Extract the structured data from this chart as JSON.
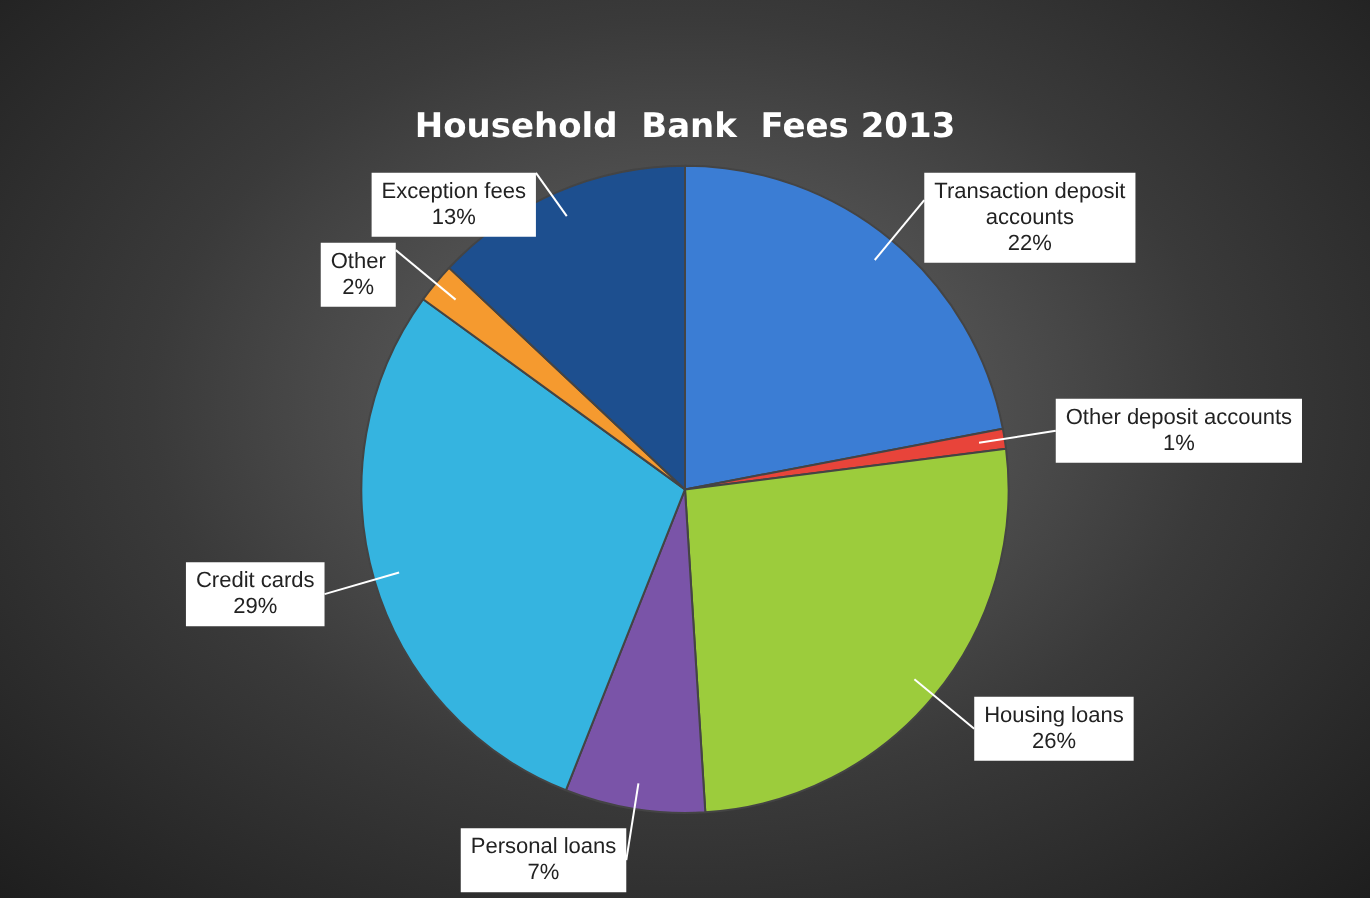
{
  "chart_data": {
    "type": "pie",
    "title": "Household  Bank  Fees 2013",
    "categories": [
      "Transaction deposit accounts",
      "Other deposit accounts",
      "Housing loans",
      "Personal loans",
      "Credit cards",
      "Other",
      "Exception fees"
    ],
    "values": [
      22,
      1,
      26,
      7,
      29,
      2,
      13
    ],
    "value_labels": [
      "22%",
      "1%",
      "26%",
      "7%",
      "29%",
      "2%",
      "13%"
    ],
    "colors": [
      "#3b7dd4",
      "#e8443a",
      "#9ccc3c",
      "#7a54a8",
      "#35b4e0",
      "#f59a2f",
      "#1d4f8f"
    ],
    "legend": false
  }
}
